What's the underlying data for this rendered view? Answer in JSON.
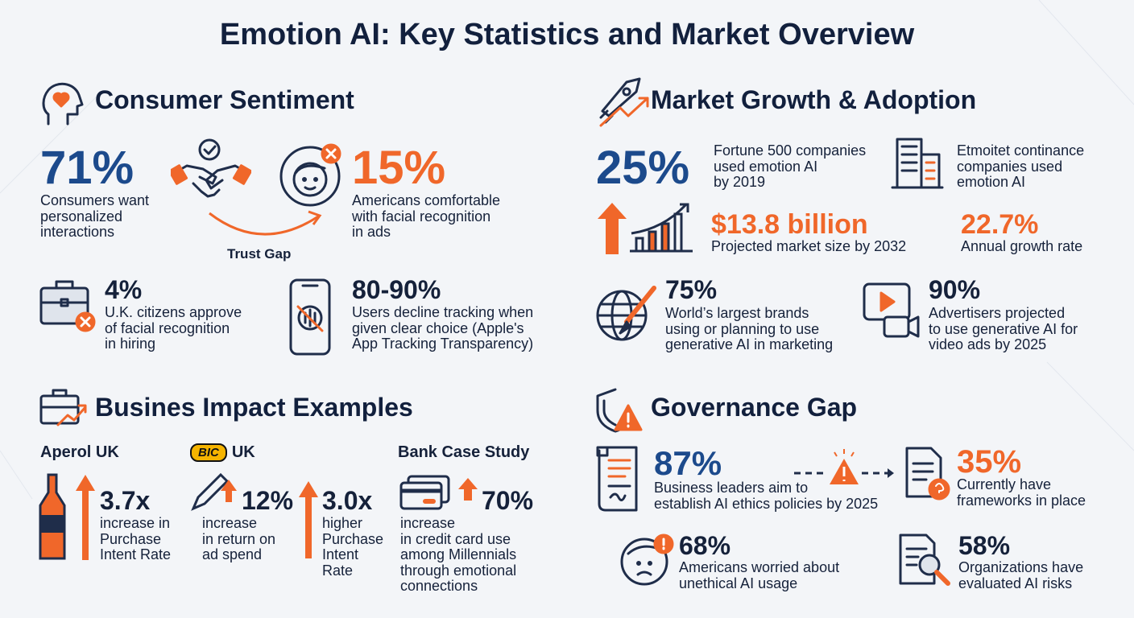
{
  "title": "Emotion AI: Key Statistics and Market Overview",
  "consumer_sentiment": {
    "heading": "Consumer Sentiment",
    "trust_gap": "Trust Gap",
    "stats": [
      {
        "value": "71%",
        "text": "Consumers want\npersonalized\ninteractions"
      },
      {
        "value": "15%",
        "text": "Americans comfortable\nwith facial recognition\nin ads"
      },
      {
        "value": "4%",
        "text": "U.K. citizens approve\nof facial recognition\nin hiring"
      },
      {
        "value": "80-90%",
        "text": "Users decline tracking when\ngiven clear choice (Apple's\nApp Tracking Transparency)"
      }
    ]
  },
  "market_growth": {
    "heading": "Market Growth & Adoption",
    "building_note": "Etmoitet continance\ncompanies used\nemotion AI",
    "stats": [
      {
        "value": "25%",
        "text": "Fortune 500 companies\nused emotion AI\nby 2019"
      },
      {
        "value": "$13.8 billion",
        "text": "Projected market size by 2032"
      },
      {
        "value": "22.7%",
        "text": "Annual growth rate"
      },
      {
        "value": "75%",
        "text": "World’s largest brands\nusing or planning to use\ngenerative AI in marketing"
      },
      {
        "value": "90%",
        "text": "Advertisers projected\nto use generative AI for\nvideo ads by 2025"
      }
    ]
  },
  "business_impact": {
    "heading": "Busines Impact Examples",
    "cases": [
      {
        "name": "Aperol UK",
        "stats": [
          {
            "value": "3.7x",
            "text": "increase in\nPurchase\nIntent Rate"
          }
        ]
      },
      {
        "logo": "BIC",
        "name": "UK",
        "stats": [
          {
            "value": "12%",
            "text": "increase\nin return on\nad spend"
          },
          {
            "value": "3.0x",
            "text": "higher\nPurchase\nIntent\nRate"
          }
        ]
      },
      {
        "name": "Bank Case Study",
        "stats": [
          {
            "value": "70%",
            "text": "increase\nin credit card use\namong Millennials\nthrough emotional\nconnections"
          }
        ]
      }
    ]
  },
  "governance_gap": {
    "heading": "Governance Gap",
    "stats": [
      {
        "value": "87%",
        "text": "Business leaders aim to\nestablish AI ethics policies by 2025"
      },
      {
        "value": "35%",
        "text": "Currently have\nframeworks in place"
      },
      {
        "value": "68%",
        "text": "Americans worried about\nunethical AI usage"
      },
      {
        "value": "58%",
        "text": "Organizations have\nevaluated AI risks"
      }
    ]
  }
}
